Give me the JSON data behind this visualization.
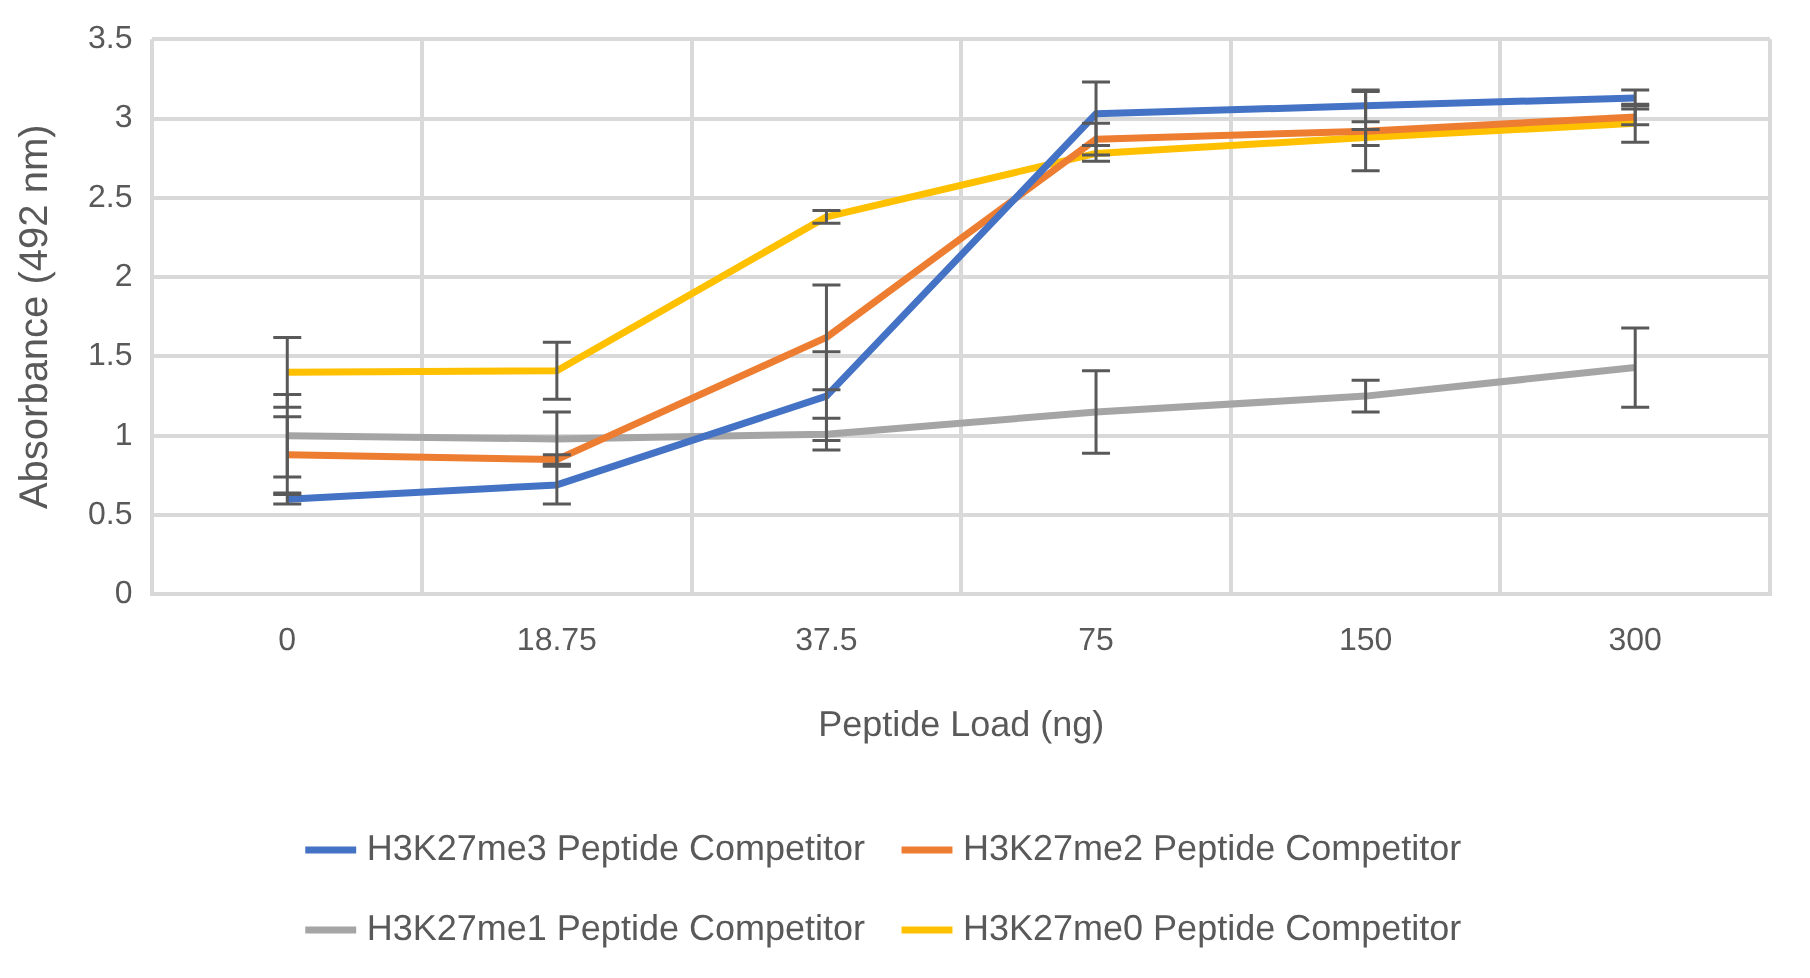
{
  "chart_data": {
    "type": "line",
    "xlabel": "Peptide Load (ng)",
    "ylabel": "Absorbance (492 nm)",
    "categories": [
      "0",
      "18.75",
      "37.5",
      "75",
      "150",
      "300"
    ],
    "series": [
      {
        "name": "H3K27me3 Peptide Competitor",
        "color": "#4472c4",
        "values": [
          0.6,
          0.69,
          1.25,
          3.03,
          3.08,
          3.13
        ],
        "errors": [
          0.03,
          0.12,
          0.28,
          0.2,
          0.1,
          0.05
        ]
      },
      {
        "name": "H3K27me2 Peptide Competitor",
        "color": "#ed7d31",
        "values": [
          0.88,
          0.85,
          1.62,
          2.87,
          2.92,
          3.01
        ],
        "errors": [
          0.24,
          0.03,
          0.33,
          0.1,
          0.25,
          0.05
        ]
      },
      {
        "name": "H3K27me1 Peptide Competitor",
        "color": "#a5a5a5",
        "values": [
          1.0,
          0.98,
          1.01,
          1.15,
          1.25,
          1.43
        ],
        "errors": [
          0.26,
          0.17,
          0.1,
          0.26,
          0.1,
          0.25
        ]
      },
      {
        "name": "H3K27me0 Peptide Competitor",
        "color": "#ffc000",
        "values": [
          1.4,
          1.41,
          2.38,
          2.78,
          2.88,
          2.97
        ],
        "errors": [
          0.22,
          0.18,
          0.04,
          0.05,
          0.05,
          0.12
        ]
      }
    ],
    "ylim": [
      0,
      3.5
    ],
    "yticks": [
      0,
      0.5,
      1,
      1.5,
      2,
      2.5,
      3,
      3.5
    ],
    "grid": true,
    "legend": "bottom",
    "marker": "none",
    "line_style": "solid"
  }
}
